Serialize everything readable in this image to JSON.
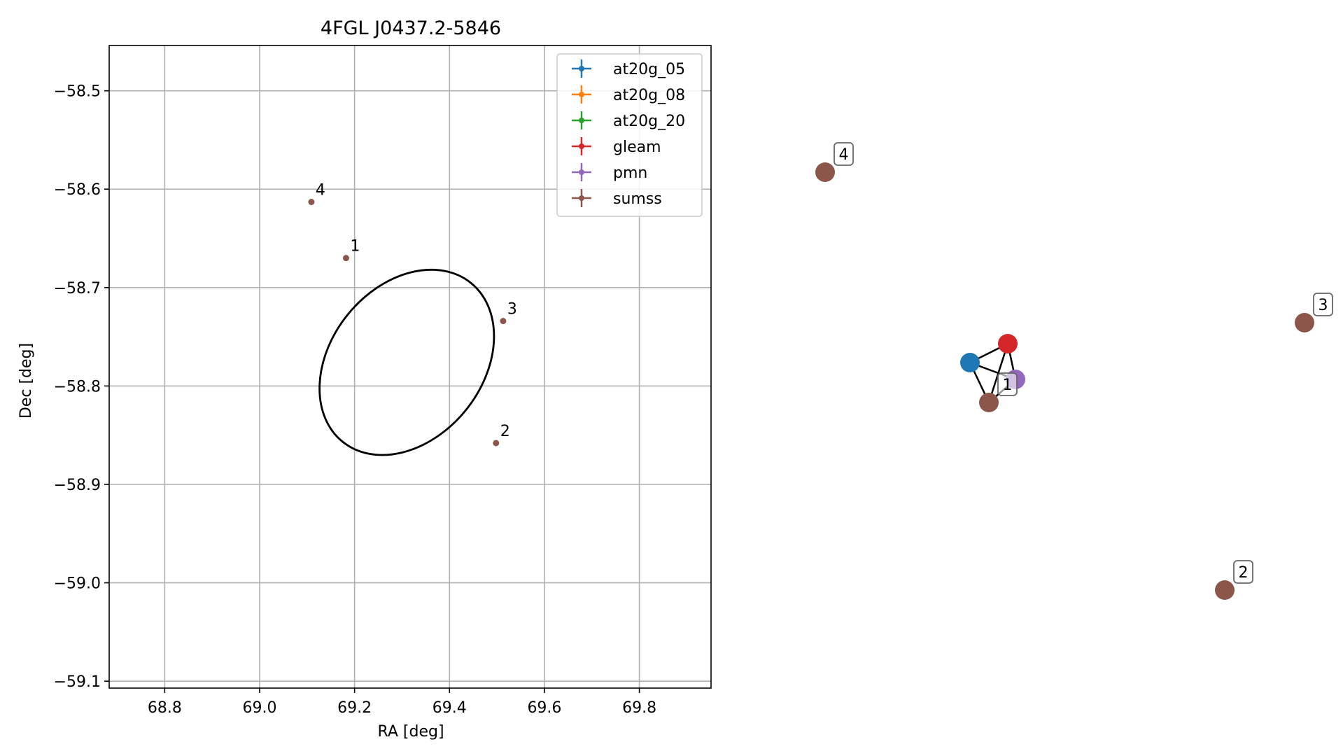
{
  "chart_data": {
    "type": "scatter",
    "title": "4FGL J0437.2-5846",
    "xlabel": "RA [deg]",
    "ylabel": "Dec [deg]",
    "xlim": [
      68.683,
      69.951
    ],
    "ylim": [
      -59.107,
      -58.454
    ],
    "xticks": [
      "68.8",
      "69.0",
      "69.2",
      "69.4",
      "69.6",
      "69.8"
    ],
    "xtick_values": [
      68.8,
      69.0,
      69.2,
      69.4,
      69.6,
      69.8
    ],
    "yticks": [
      "−58.5",
      "−58.6",
      "−58.7",
      "−58.8",
      "−58.9",
      "−59.0",
      "−59.1"
    ],
    "ytick_values": [
      -58.5,
      -58.6,
      -58.7,
      -58.8,
      -58.9,
      -59.0,
      -59.1
    ],
    "grid": true,
    "legend_position": "top-right",
    "series": [
      {
        "name": "at20g_05",
        "color": "#1f77b4",
        "points": []
      },
      {
        "name": "at20g_08",
        "color": "#ff7f0e",
        "points": []
      },
      {
        "name": "at20g_20",
        "color": "#2ca02c",
        "points": []
      },
      {
        "name": "gleam",
        "color": "#d62728",
        "points": []
      },
      {
        "name": "pmn",
        "color": "#9467bd",
        "points": []
      },
      {
        "name": "sumss",
        "color": "#8c564b",
        "points": [
          {
            "label": "1",
            "ra": 69.182,
            "dec": -58.67
          },
          {
            "label": "2",
            "ra": 69.498,
            "dec": -58.858
          },
          {
            "label": "3",
            "ra": 69.513,
            "dec": -58.734
          },
          {
            "label": "4",
            "ra": 69.109,
            "dec": -58.613
          }
        ]
      }
    ],
    "ellipse": {
      "center_ra": 69.31,
      "center_dec": -58.776,
      "semi_major_deg": 0.215,
      "semi_minor_deg": 0.16,
      "angle_deg": -51,
      "color": "#000000"
    }
  },
  "network": {
    "nodes": [
      {
        "id": "sumss-4",
        "label": "4",
        "color": "#8c564b"
      },
      {
        "id": "sumss-3",
        "label": "3",
        "color": "#8c564b"
      },
      {
        "id": "gleam",
        "label": "",
        "color": "#d62728"
      },
      {
        "id": "at20g",
        "label": "",
        "color": "#1f77b4"
      },
      {
        "id": "pmn",
        "label": "",
        "color": "#9467bd"
      },
      {
        "id": "sumss-1",
        "label": "1",
        "color": "#8c564b"
      },
      {
        "id": "sumss-2",
        "label": "2",
        "color": "#8c564b"
      }
    ],
    "edges": [
      [
        "at20g",
        "gleam"
      ],
      [
        "at20g",
        "pmn"
      ],
      [
        "at20g",
        "sumss-1"
      ],
      [
        "gleam",
        "pmn"
      ],
      [
        "gleam",
        "sumss-1"
      ],
      [
        "pmn",
        "sumss-1"
      ]
    ]
  }
}
